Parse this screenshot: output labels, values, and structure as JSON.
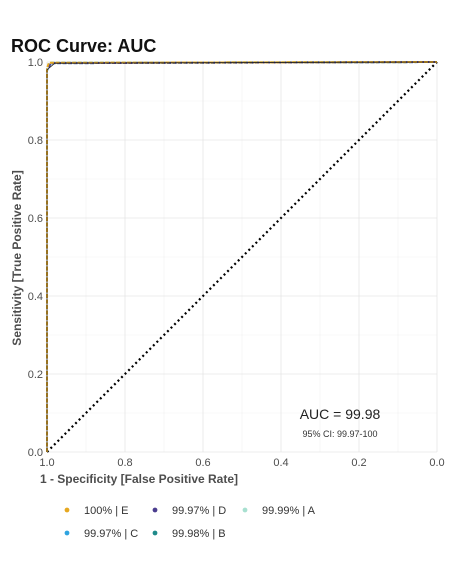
{
  "chart_data": {
    "type": "line",
    "title": "ROC Curve: AUC",
    "xlabel": "1 - Specificity [False Positive Rate]",
    "ylabel": "Sensitivity [True Positive Rate]",
    "xlim": [
      1.0,
      0.0
    ],
    "ylim": [
      0.0,
      1.0
    ],
    "x_reversed": true,
    "x_ticks": [
      "1.0",
      "0.8",
      "0.6",
      "0.4",
      "0.2",
      "0.0"
    ],
    "y_ticks": [
      "0.0",
      "0.2",
      "0.4",
      "0.6",
      "0.8",
      "1.0"
    ],
    "grid": true,
    "legend_position": "bottom",
    "annotation": {
      "auc": "AUC = 99.98",
      "ci": "95% CI: 99.97-100"
    },
    "reference_line": {
      "style": "dotted",
      "color": "#000000",
      "x": [
        1.0,
        0.0
      ],
      "y": [
        0.0,
        1.0
      ]
    },
    "series": [
      {
        "name": "100% | E",
        "color": "#E6A820",
        "x": [
          1.0,
          1.0,
          0.995,
          0.0
        ],
        "y": [
          0.0,
          0.985,
          0.998,
          1.0
        ]
      },
      {
        "name": "99.97% | D",
        "color": "#4B3D8F",
        "x": [
          1.0,
          1.0,
          0.99,
          0.0
        ],
        "y": [
          0.0,
          0.98,
          0.997,
          1.0
        ]
      },
      {
        "name": "99.99% | A",
        "color": "#A8E0D0",
        "x": [
          1.0,
          1.0,
          0.993,
          0.0
        ],
        "y": [
          0.0,
          0.982,
          0.998,
          1.0
        ]
      },
      {
        "name": "99.97% | C",
        "color": "#2FA4E0",
        "x": [
          1.0,
          1.0,
          0.99,
          0.0
        ],
        "y": [
          0.0,
          0.978,
          0.997,
          1.0
        ]
      },
      {
        "name": "99.98% | B",
        "color": "#1F8A8A",
        "x": [
          1.0,
          1.0,
          0.992,
          0.0
        ],
        "y": [
          0.0,
          0.98,
          0.998,
          1.0
        ]
      }
    ]
  }
}
